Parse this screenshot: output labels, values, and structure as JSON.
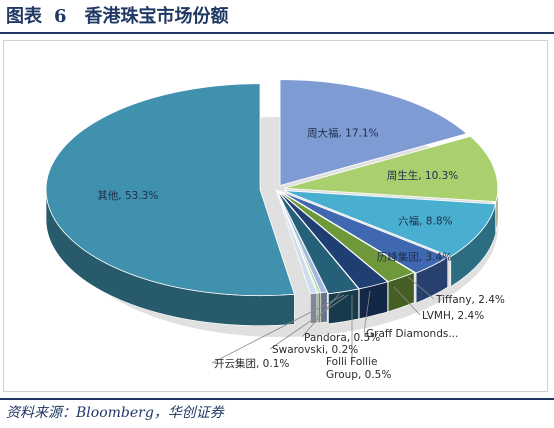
{
  "header": {
    "figure_label": "图表",
    "figure_number": "6",
    "title": "香港珠宝市场份额"
  },
  "source": "资料来源：Bloomberg，华创证券",
  "chart_data": {
    "type": "pie",
    "style": "3d-exploded",
    "title": "",
    "slices": [
      {
        "label": "周大福, 17.1%",
        "name": "周大福",
        "value": 17.1,
        "color": "#7f9bd4"
      },
      {
        "label": "周生生, 10.3%",
        "name": "周生生",
        "value": 10.3,
        "color": "#a9cf6e"
      },
      {
        "label": "六福, 8.8%",
        "name": "六福",
        "value": 8.8,
        "color": "#49afd0"
      },
      {
        "label": "历峰集团, 3.4%",
        "name": "历峰集团",
        "value": 3.4,
        "color": "#3f68b0"
      },
      {
        "label": "Tiffany, 2.4%",
        "name": "Tiffany",
        "value": 2.4,
        "color": "#6f983b"
      },
      {
        "label": "LVMH, 2.4%",
        "name": "LVMH",
        "value": 2.4,
        "color": "#1f3f73"
      },
      {
        "label": "Graff Diamonds...",
        "name": "Graff Diamonds",
        "value": 2.4,
        "color": "#255f78"
      },
      {
        "label": "Folli Follie Group, 0.5%",
        "name": "Folli Follie Group",
        "value": 0.5,
        "color": "#a3b9e0"
      },
      {
        "label": "Swarovski, 0.2%",
        "name": "Swarovski",
        "value": 0.2,
        "color": "#bcd698"
      },
      {
        "label": "开云集团, 0.1%",
        "name": "开云集团",
        "value": 0.1,
        "color": "#8ccce2"
      },
      {
        "label": "Pandora, 0.5%",
        "name": "Pandora",
        "value": 0.5,
        "color": "#cfdcf0"
      },
      {
        "label": "其他, 53.3%",
        "name": "其他",
        "value": 53.3,
        "color": "#3f91ad"
      }
    ]
  }
}
